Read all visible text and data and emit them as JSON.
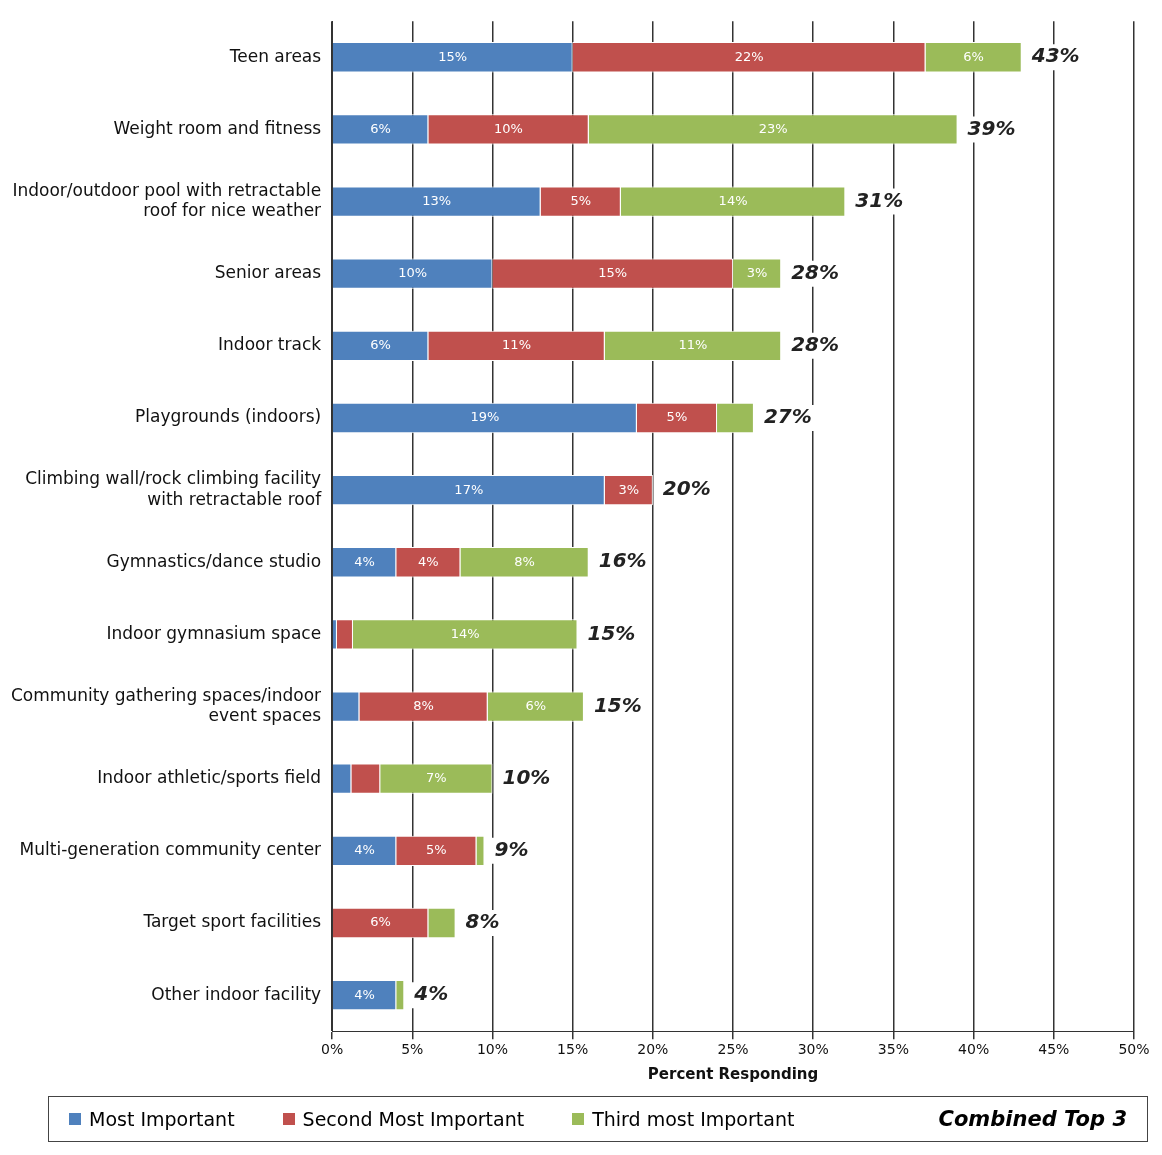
{
  "chart_data": {
    "type": "bar",
    "orientation": "horizontal",
    "stacked": true,
    "xlabel": "Percent Responding",
    "categories": [
      "Teen areas",
      "Weight room and fitness",
      "Indoor/outdoor pool with retractable roof for nice weather",
      "Senior areas",
      "Indoor track",
      "Playgrounds (indoors)",
      "Climbing wall/rock climbing facility with retractable roof",
      "Gymnastics/dance studio",
      "Indoor gymnasium space",
      "Community gathering spaces/indoor event spaces",
      "Indoor athletic/sports field",
      "Multi-generation community center",
      "Target sport facilities",
      "Other indoor facility"
    ],
    "series": [
      {
        "name": "Most Important",
        "color": "#4f81bd",
        "values": [
          15,
          6,
          13,
          10,
          6,
          19,
          17,
          4,
          0.3,
          1.7,
          1.2,
          4,
          0,
          4
        ],
        "value_labels": [
          "15%",
          "6%",
          "13%",
          "10%",
          "6%",
          "19%",
          "17%",
          "4%",
          null,
          null,
          null,
          "4%",
          null,
          "4%"
        ]
      },
      {
        "name": "Second Most Important",
        "color": "#c0504d",
        "values": [
          22,
          10,
          5,
          15,
          11,
          5,
          3,
          4,
          1,
          8,
          1.8,
          5,
          6,
          0
        ],
        "value_labels": [
          "22%",
          "10%",
          "5%",
          "15%",
          "11%",
          "5%",
          "3%",
          "4%",
          null,
          "8%",
          null,
          "5%",
          "6%",
          null
        ]
      },
      {
        "name": "Third most Important",
        "color": "#9bbb59",
        "values": [
          6,
          23,
          14,
          3,
          11,
          2.3,
          0,
          8,
          14,
          6,
          7,
          0.5,
          1.7,
          0.5
        ],
        "value_labels": [
          "6%",
          "23%",
          "14%",
          "3%",
          "11%",
          null,
          null,
          "8%",
          "14%",
          "6%",
          "7%",
          null,
          null,
          null
        ]
      }
    ],
    "totals": [
      "43%",
      "39%",
      "31%",
      "28%",
      "28%",
      "27%",
      "20%",
      "16%",
      "15%",
      "15%",
      "10%",
      "9%",
      "8%",
      "4%"
    ],
    "xlim": [
      0,
      50
    ],
    "xticks": [
      {
        "value": 0,
        "label": "0%"
      },
      {
        "value": 5,
        "label": "5%"
      },
      {
        "value": 10,
        "label": "10%"
      },
      {
        "value": 15,
        "label": "15%"
      },
      {
        "value": 20,
        "label": "20%"
      },
      {
        "value": 25,
        "label": "25%"
      },
      {
        "value": 30,
        "label": "30%"
      },
      {
        "value": 35,
        "label": "35%"
      },
      {
        "value": 40,
        "label": "40%"
      },
      {
        "value": 45,
        "label": "45%"
      },
      {
        "value": 50,
        "label": "50%"
      }
    ],
    "grid": "x",
    "legend": "bottom",
    "annotations": [
      "Combined Top 3"
    ]
  }
}
